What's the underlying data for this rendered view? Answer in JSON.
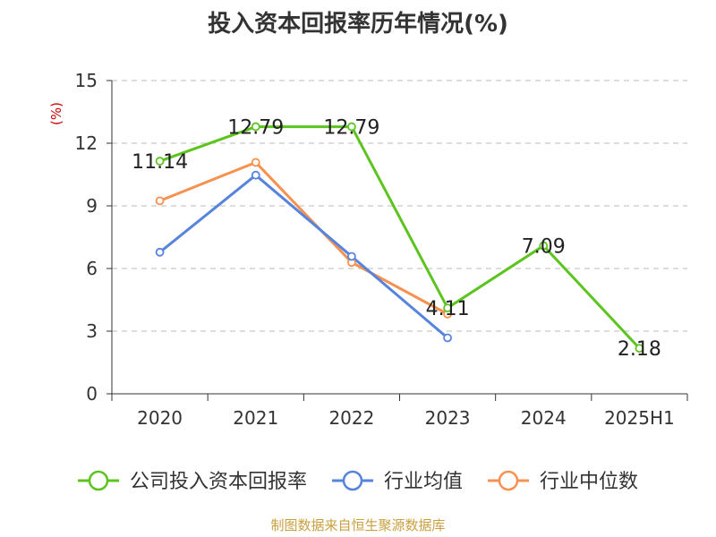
{
  "chart_data": {
    "type": "line",
    "title": "投入资本回报率历年情况(%)",
    "ylabel": "(%)",
    "categories": [
      "2020",
      "2021",
      "2022",
      "2023",
      "2024",
      "2025H1"
    ],
    "yticks": [
      "0",
      "3",
      "6",
      "9",
      "12",
      "15"
    ],
    "ylim": [
      0,
      15
    ],
    "grid": true,
    "legend_position": "bottom",
    "series": [
      {
        "name": "公司投入资本回报率",
        "color": "#5cc41e",
        "values": [
          11.14,
          12.79,
          12.79,
          4.11,
          7.09,
          2.18
        ],
        "labels": [
          "11.14",
          "12.79",
          "12.79",
          "4.11",
          "7.09",
          "2.18"
        ]
      },
      {
        "name": "行业均值",
        "color": "#5583dd",
        "values": [
          6.78,
          10.47,
          6.58,
          2.68,
          null,
          null
        ]
      },
      {
        "name": "行业中位数",
        "color": "#f79150",
        "values": [
          9.24,
          11.08,
          6.29,
          3.82,
          null,
          null
        ]
      }
    ]
  },
  "source": "制图数据来自恒生聚源数据库"
}
